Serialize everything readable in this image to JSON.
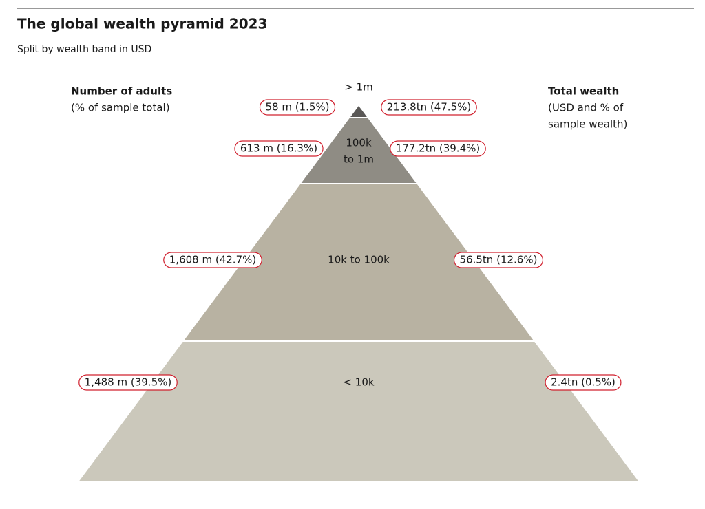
{
  "header": {
    "title": "The global wealth pyramid 2023",
    "subtitle": "Split by wealth band in USD"
  },
  "left_heading": {
    "title": "Number of adults",
    "note": "(% of sample total)"
  },
  "right_heading": {
    "title": "Total wealth",
    "note_lines": [
      "(USD and % of",
      "sample wealth)"
    ]
  },
  "tiers": [
    {
      "band_lines": [
        "> 1m"
      ],
      "adults": "58 m (1.5%)",
      "wealth": "213.8tn (47.5%)"
    },
    {
      "band_lines": [
        "100k",
        "to 1m"
      ],
      "adults": "613 m (16.3%)",
      "wealth": "177.2tn (39.4%)"
    },
    {
      "band_lines": [
        "10k to 100k"
      ],
      "adults": "1,608 m (42.7%)",
      "wealth": "56.5tn (12.6%)"
    },
    {
      "band_lines": [
        "< 10k"
      ],
      "adults": "1,488 m (39.5%)",
      "wealth": "2.4tn (0.5%)"
    }
  ]
}
